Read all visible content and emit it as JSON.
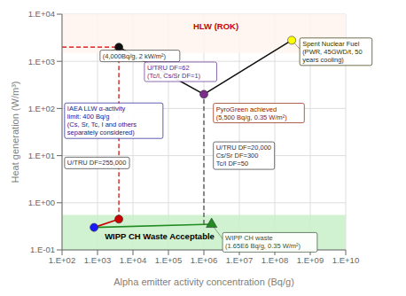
{
  "chart_data": {
    "type": "line",
    "xlabel": "Alpha emitter activity concentration (Bq/g)",
    "ylabel": "Heat generation (W/m³)",
    "log": true,
    "grid": true,
    "xlim": [
      100,
      10000000000
    ],
    "ylim": [
      0.1,
      10000
    ],
    "xticks": [
      {
        "value": 100,
        "label": "1.E+02"
      },
      {
        "value": 1000,
        "label": "1.E+03"
      },
      {
        "value": 10000,
        "label": "1.E+04"
      },
      {
        "value": 100000,
        "label": "1.E+05"
      },
      {
        "value": 1000000,
        "label": "1.E+06"
      },
      {
        "value": 10000000,
        "label": "1.E+07"
      },
      {
        "value": 100000000,
        "label": "1.E+08"
      },
      {
        "value": 1000000000,
        "label": "1.E+09"
      },
      {
        "value": 10000000000,
        "label": "1.E+10"
      }
    ],
    "yticks": [
      {
        "value": 0.1,
        "label": "1.E-01"
      },
      {
        "value": 1,
        "label": "1.E+00"
      },
      {
        "value": 10,
        "label": "1.E+01"
      },
      {
        "value": 100,
        "label": "1.E+02"
      },
      {
        "value": 1000,
        "label": "1.E+03"
      },
      {
        "value": 10000,
        "label": "1.E+04"
      }
    ],
    "regions": [
      {
        "ylim": [
          1500,
          10000
        ],
        "color": "#fff5ee",
        "label": {
          "text": "HLW (ROK)",
          "x": 500000,
          "y": 5500,
          "color": "#cc0000"
        }
      },
      {
        "ylim": [
          0.1,
          0.55
        ],
        "color": "#c8f0c8",
        "label": {
          "text": "WIPP CH Waste Acceptable",
          "x": 1600,
          "y": 0.195,
          "color": "#000000"
        }
      }
    ],
    "series": [
      {
        "type": "line",
        "line_style": "dashed",
        "color": "#cc0000",
        "x": [
          100,
          4000
        ],
        "values": [
          2000,
          2000
        ]
      },
      {
        "type": "line",
        "line_style": "dashed",
        "color": "#cc0000",
        "x": [
          4000,
          4000
        ],
        "values": [
          0.45,
          2000
        ]
      },
      {
        "type": "line",
        "line_style": "dashed",
        "color": "#444444",
        "x": [
          1000000,
          1000000
        ],
        "values": [
          0.35,
          200
        ]
      },
      {
        "type": "line",
        "line_style": "solid",
        "color": "#111111",
        "x": [
          4000,
          1000000,
          300000000
        ],
        "values": [
          2000,
          200,
          2800
        ]
      },
      {
        "type": "line",
        "line_style": "solid",
        "color": "#cc0000",
        "x": [
          800,
          4000
        ],
        "values": [
          0.3,
          0.45
        ]
      },
      {
        "type": "line",
        "line_style": "solid",
        "color": "#228B22",
        "x": [
          800,
          1650000
        ],
        "values": [
          0.3,
          0.35
        ]
      },
      {
        "type": "scatter",
        "marker": "circle",
        "color": "#ffff00",
        "x": [
          300000000
        ],
        "values": [
          2800
        ]
      },
      {
        "type": "scatter",
        "marker": "circle",
        "color": "#111111",
        "x": [
          4000
        ],
        "values": [
          2000
        ]
      },
      {
        "type": "scatter",
        "marker": "circle",
        "color": "#7b2d8b",
        "x": [
          1000000
        ],
        "values": [
          200
        ]
      },
      {
        "type": "scatter",
        "marker": "triangle",
        "color": "#228B22",
        "x": [
          1650000
        ],
        "values": [
          0.35
        ]
      },
      {
        "type": "scatter",
        "marker": "circle",
        "color": "#1a1aff",
        "x": [
          800
        ],
        "values": [
          0.3
        ]
      },
      {
        "type": "scatter",
        "marker": "circle",
        "color": "#cc0000",
        "x": [
          4000
        ],
        "values": [
          0.45
        ]
      }
    ],
    "annotations": [
      {
        "text": "(4,000Bq/g, 2 kW/m²)",
        "x": 1400,
        "y": 1300,
        "color": "#333333",
        "point": [
          4000,
          2000
        ]
      },
      {
        "text": "U/TRU DF=62\n(Tc/I, Cs/Sr DF=1)",
        "x": 25000,
        "y": 600,
        "color": "#5b2d8e"
      },
      {
        "text": "Spent Nuclear Fuel\n(PWR, 45GWD/t, 50\nyears cooling)",
        "x": 600000000,
        "y": 1600,
        "color": "#333300",
        "point": [
          300000000,
          2800
        ]
      },
      {
        "text": "IAEA LLW α-activity\nlimit: 400 Bq/g\n(Cs, Sr, Tc, I and others\nseparately considered)",
        "x": 140,
        "y": 55,
        "color": "#1a1a8c"
      },
      {
        "text": "U/TRU DF=255,000",
        "x": 140,
        "y": 7,
        "color": "#333333"
      },
      {
        "text": "PyroGreen achieved\n(5,500 Bq/g, 0.35 W/m²)",
        "x": 2200000,
        "y": 80,
        "color": "#8B1A00"
      },
      {
        "text": "U/TRU DF=20,000\nCs/Sr DF=300\nTc/I DF=50",
        "x": 2200000,
        "y": 10,
        "color": "#333333"
      },
      {
        "text": "WIPP CH waste\n(1.65E6 Bq/g, 0.35 W/m²)",
        "x": 4000000,
        "y": 0.145,
        "color": "#335533",
        "point": [
          1650000,
          0.35
        ]
      }
    ]
  }
}
